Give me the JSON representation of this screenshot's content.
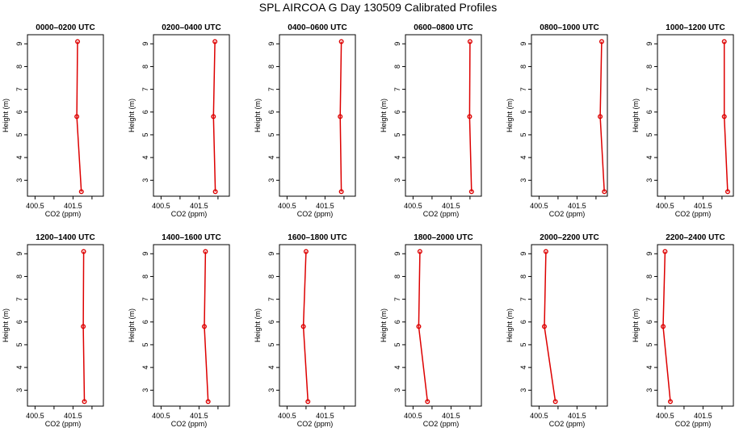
{
  "title": "SPL AIRCOA G  Day 130509  Calibrated Profiles",
  "colors": {
    "line": "#dd0000",
    "axis": "#000000"
  },
  "chart_data": [
    {
      "type": "line",
      "title": "0000–0200 UTC",
      "xlabel": "CO2 (ppm)",
      "ylabel": "Height (m)",
      "xlim": [
        400.3,
        402.3
      ],
      "ylim": [
        2.3,
        9.4
      ],
      "xticks": [
        400.5,
        401.5
      ],
      "yticks": [
        3,
        4,
        5,
        6,
        7,
        8,
        9
      ],
      "series": [
        {
          "x": [
            401.62,
            401.6,
            401.72
          ],
          "y": [
            9.1,
            5.8,
            2.5
          ]
        }
      ]
    },
    {
      "type": "line",
      "title": "0200–0400 UTC",
      "xlabel": "CO2 (ppm)",
      "ylabel": "Height (m)",
      "xlim": [
        400.3,
        402.3
      ],
      "ylim": [
        2.3,
        9.4
      ],
      "xticks": [
        400.5,
        401.5
      ],
      "yticks": [
        3,
        4,
        5,
        6,
        7,
        8,
        9
      ],
      "series": [
        {
          "x": [
            401.92,
            401.88,
            401.93
          ],
          "y": [
            9.1,
            5.8,
            2.5
          ]
        }
      ]
    },
    {
      "type": "line",
      "title": "0400–0600 UTC",
      "xlabel": "CO2 (ppm)",
      "ylabel": "Height (m)",
      "xlim": [
        400.3,
        402.3
      ],
      "ylim": [
        2.3,
        9.4
      ],
      "xticks": [
        400.5,
        401.5
      ],
      "yticks": [
        3,
        4,
        5,
        6,
        7,
        8,
        9
      ],
      "series": [
        {
          "x": [
            401.93,
            401.9,
            401.93
          ],
          "y": [
            9.1,
            5.8,
            2.5
          ]
        }
      ]
    },
    {
      "type": "line",
      "title": "0600–0800 UTC",
      "xlabel": "CO2 (ppm)",
      "ylabel": "Height (m)",
      "xlim": [
        400.3,
        402.3
      ],
      "ylim": [
        2.3,
        9.4
      ],
      "xticks": [
        400.5,
        401.5
      ],
      "yticks": [
        3,
        4,
        5,
        6,
        7,
        8,
        9
      ],
      "series": [
        {
          "x": [
            402.0,
            401.99,
            402.04
          ],
          "y": [
            9.1,
            5.8,
            2.5
          ]
        }
      ]
    },
    {
      "type": "line",
      "title": "0800–1000 UTC",
      "xlabel": "CO2 (ppm)",
      "ylabel": "Height (m)",
      "xlim": [
        400.3,
        402.3
      ],
      "ylim": [
        2.3,
        9.4
      ],
      "xticks": [
        400.5,
        401.5
      ],
      "yticks": [
        3,
        4,
        5,
        6,
        7,
        8,
        9
      ],
      "series": [
        {
          "x": [
            402.15,
            402.11,
            402.22
          ],
          "y": [
            9.1,
            5.8,
            2.5
          ]
        }
      ]
    },
    {
      "type": "line",
      "title": "1000–1200 UTC",
      "xlabel": "CO2 (ppm)",
      "ylabel": "Height (m)",
      "xlim": [
        400.3,
        402.3
      ],
      "ylim": [
        2.3,
        9.4
      ],
      "xticks": [
        400.5,
        401.5
      ],
      "yticks": [
        3,
        4,
        5,
        6,
        7,
        8,
        9
      ],
      "series": [
        {
          "x": [
            402.06,
            402.06,
            402.15
          ],
          "y": [
            9.1,
            5.8,
            2.5
          ]
        }
      ]
    },
    {
      "type": "line",
      "title": "1200–1400 UTC",
      "xlabel": "CO2 (ppm)",
      "ylabel": "Height (m)",
      "xlim": [
        400.3,
        402.3
      ],
      "ylim": [
        2.3,
        9.4
      ],
      "xticks": [
        400.5,
        401.5
      ],
      "yticks": [
        3,
        4,
        5,
        6,
        7,
        8,
        9
      ],
      "series": [
        {
          "x": [
            401.78,
            401.77,
            401.8
          ],
          "y": [
            9.1,
            5.8,
            2.5
          ]
        }
      ]
    },
    {
      "type": "line",
      "title": "1400–1600 UTC",
      "xlabel": "CO2 (ppm)",
      "ylabel": "Height (m)",
      "xlim": [
        400.3,
        402.3
      ],
      "ylim": [
        2.3,
        9.4
      ],
      "xticks": [
        400.5,
        401.5
      ],
      "yticks": [
        3,
        4,
        5,
        6,
        7,
        8,
        9
      ],
      "series": [
        {
          "x": [
            401.67,
            401.64,
            401.74
          ],
          "y": [
            9.1,
            5.8,
            2.5
          ]
        }
      ]
    },
    {
      "type": "line",
      "title": "1600–1800 UTC",
      "xlabel": "CO2 (ppm)",
      "ylabel": "Height (m)",
      "xlim": [
        400.3,
        402.3
      ],
      "ylim": [
        2.3,
        9.4
      ],
      "xticks": [
        400.5,
        401.5
      ],
      "yticks": [
        3,
        4,
        5,
        6,
        7,
        8,
        9
      ],
      "series": [
        {
          "x": [
            401.0,
            400.93,
            401.05
          ],
          "y": [
            9.1,
            5.8,
            2.5
          ]
        }
      ]
    },
    {
      "type": "line",
      "title": "1800–2000 UTC",
      "xlabel": "CO2 (ppm)",
      "ylabel": "Height (m)",
      "xlim": [
        400.3,
        402.3
      ],
      "ylim": [
        2.3,
        9.4
      ],
      "xticks": [
        400.5,
        401.5
      ],
      "yticks": [
        3,
        4,
        5,
        6,
        7,
        8,
        9
      ],
      "series": [
        {
          "x": [
            400.68,
            400.65,
            400.88
          ],
          "y": [
            9.1,
            5.8,
            2.5
          ]
        }
      ]
    },
    {
      "type": "line",
      "title": "2000–2200 UTC",
      "xlabel": "CO2 (ppm)",
      "ylabel": "Height (m)",
      "xlim": [
        400.3,
        402.3
      ],
      "ylim": [
        2.3,
        9.4
      ],
      "xticks": [
        400.5,
        401.5
      ],
      "yticks": [
        3,
        4,
        5,
        6,
        7,
        8,
        9
      ],
      "series": [
        {
          "x": [
            400.68,
            400.64,
            400.93
          ],
          "y": [
            9.1,
            5.8,
            2.5
          ]
        }
      ]
    },
    {
      "type": "line",
      "title": "2200–2400 UTC",
      "xlabel": "CO2 (ppm)",
      "ylabel": "Height (m)",
      "xlim": [
        400.3,
        402.3
      ],
      "ylim": [
        2.3,
        9.4
      ],
      "xticks": [
        400.5,
        401.5
      ],
      "yticks": [
        3,
        4,
        5,
        6,
        7,
        8,
        9
      ],
      "series": [
        {
          "x": [
            400.5,
            400.45,
            400.64
          ],
          "y": [
            9.1,
            5.8,
            2.5
          ]
        }
      ]
    }
  ]
}
